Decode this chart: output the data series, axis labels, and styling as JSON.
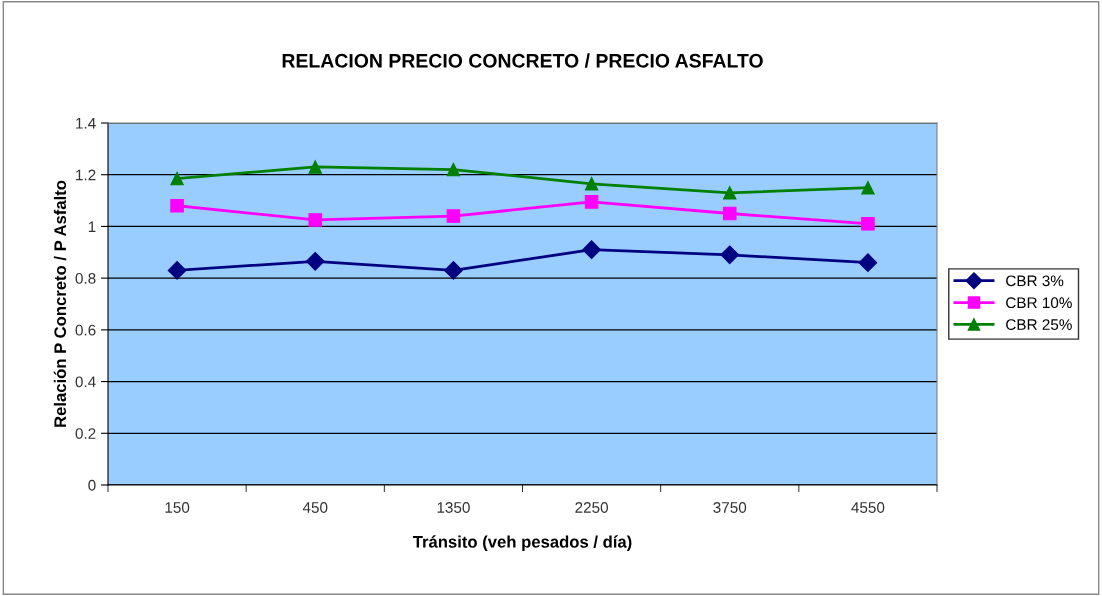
{
  "chart_data": {
    "type": "line",
    "title": "RELACION PRECIO CONCRETO / PRECIO ASFALTO",
    "xlabel": "Tránsito (veh pesados / día)",
    "ylabel": "Relación P Concreto / P Asfalto",
    "categories": [
      "150",
      "450",
      "1350",
      "2250",
      "3750",
      "4550"
    ],
    "series": [
      {
        "name": "CBR 3%",
        "color": "#000080",
        "marker": "diamond",
        "values": [
          0.83,
          0.865,
          0.83,
          0.91,
          0.89,
          0.86
        ]
      },
      {
        "name": "CBR 10%",
        "color": "#ff00ff",
        "marker": "square",
        "values": [
          1.08,
          1.025,
          1.04,
          1.095,
          1.05,
          1.01
        ]
      },
      {
        "name": "CBR 25%",
        "color": "#008000",
        "marker": "triangle",
        "values": [
          1.185,
          1.23,
          1.22,
          1.165,
          1.13,
          1.15
        ]
      }
    ],
    "ylim": [
      0,
      1.4
    ],
    "yticks": [
      0,
      0.2,
      0.4,
      0.6,
      0.8,
      1,
      1.2,
      1.4
    ],
    "grid": "y",
    "legend": "right"
  }
}
